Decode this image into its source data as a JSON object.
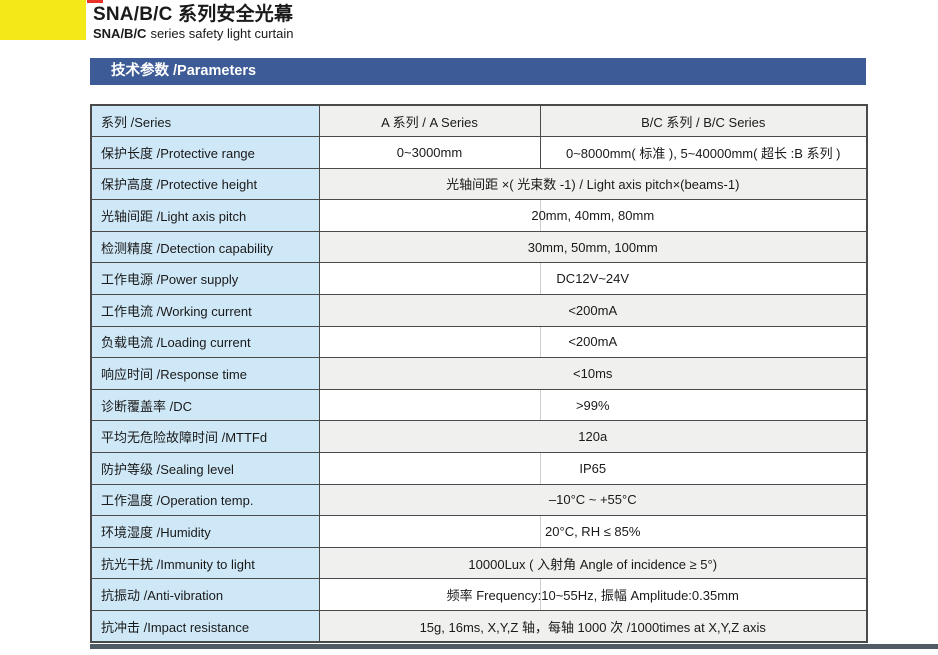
{
  "colors": {
    "yellow_block": "#f3e918",
    "red_tick": "#e8332a",
    "section_bar": "#3d5c97",
    "param_cell_bg": "#cfe8f7",
    "stripe_bg": "#f0f0ee",
    "footer_bar": "#505b66",
    "table_border": "#4a4a4a"
  },
  "header": {
    "title": "SNA/B/C 系列安全光幕",
    "subtitle_brand": "SNA/B/C",
    "subtitle_rest": "series safety light curtain"
  },
  "section": {
    "title": "技术参数 /Parameters"
  },
  "table": {
    "columns": [
      "系列 /Series",
      "A 系列 / A Series",
      "B/C 系列 / B/C Series"
    ],
    "rows": [
      {
        "param": "保护长度 /Protective range",
        "values": [
          "0~3000mm",
          "0~8000mm( 标准 ), 5~40000mm( 超长 :B 系列 )"
        ]
      },
      {
        "param": "保护高度 /Protective height",
        "values": [
          "光轴间距 ×( 光束数 -1) / Light axis pitch×(beams-1)"
        ]
      },
      {
        "param": "光轴间距 /Light axis pitch",
        "values": [
          "20mm, 40mm, 80mm"
        ]
      },
      {
        "param": "检测精度 /Detection capability",
        "values": [
          "30mm, 50mm, 100mm"
        ]
      },
      {
        "param": "工作电源 /Power supply",
        "values": [
          "DC12V~24V"
        ]
      },
      {
        "param": "工作电流 /Working current",
        "values": [
          "<200mA"
        ]
      },
      {
        "param": "负载电流 /Loading current",
        "values": [
          "<200mA"
        ]
      },
      {
        "param": "响应时间 /Response time",
        "values": [
          "<10ms"
        ]
      },
      {
        "param": "诊断覆盖率 /DC",
        "values": [
          ">99%"
        ]
      },
      {
        "param": "平均无危险故障时间 /MTTFd",
        "values": [
          "120a"
        ]
      },
      {
        "param": "防护等级 /Sealing level",
        "values": [
          "IP65"
        ]
      },
      {
        "param": "工作温度 /Operation temp.",
        "values": [
          "–10°C ~ +55°C"
        ]
      },
      {
        "param": "环境湿度 /Humidity",
        "values": [
          "20°C, RH ≤ 85%"
        ]
      },
      {
        "param": "抗光干扰 /Immunity to light",
        "values": [
          "10000Lux ( 入射角 Angle of incidence ≥ 5°)"
        ]
      },
      {
        "param": "抗振动 /Anti-vibration",
        "values": [
          "频率 Frequency:10~55Hz, 振幅 Amplitude:0.35mm"
        ]
      },
      {
        "param": "抗冲击 /Impact resistance",
        "values": [
          "15g, 16ms, X,Y,Z 轴，每轴 1000 次 /1000times at X,Y,Z axis"
        ]
      }
    ]
  }
}
